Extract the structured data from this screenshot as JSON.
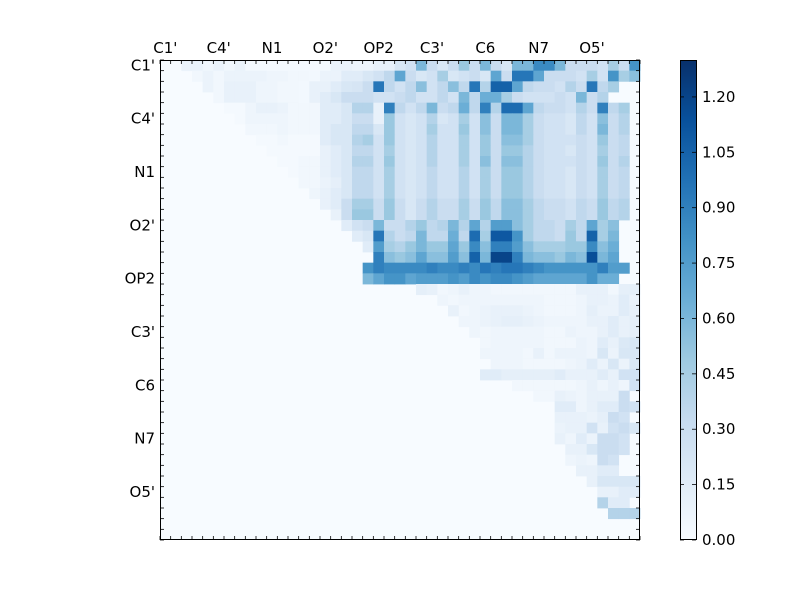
{
  "chart_data": {
    "type": "heatmap",
    "title": "",
    "xlabel": "",
    "ylabel": "",
    "size": 45,
    "x_tick_labels": [
      "C1'",
      "C4'",
      "N1",
      "O2'",
      "OP2",
      "C3'",
      "C6",
      "N7",
      "O5'"
    ],
    "y_tick_labels": [
      "C1'",
      "C4'",
      "N1",
      "O2'",
      "OP2",
      "C3'",
      "C6",
      "N7",
      "O5'"
    ],
    "label_indices": [
      0,
      5,
      10,
      15,
      20,
      25,
      30,
      35,
      40
    ],
    "value_range": [
      0,
      1.3
    ],
    "colorbar_ticks": [
      "0.00",
      "0.15",
      "0.30",
      "0.45",
      "0.60",
      "0.75",
      "0.90",
      "1.05",
      "1.20"
    ],
    "colormap": "Blues",
    "colormap_stops": [
      "#f7fbff",
      "#deebf7",
      "#c6dbef",
      "#9ecae1",
      "#6baed6",
      "#4292c6",
      "#2171b5",
      "#08519c",
      "#08306b"
    ],
    "rows": [
      {
        "from": 2,
        "values": [
          0.08,
          0.08,
          0.04,
          0.08,
          0.04,
          0.08,
          0.02,
          0.02,
          0.02,
          0.02,
          0.02,
          0.02,
          0.02,
          0.02,
          0.08,
          0.08,
          0.06,
          0.06,
          0.1,
          0.1,
          0.2,
          0.25,
          0.6,
          0.3,
          0.2,
          0.3,
          0.5,
          0.3,
          0.6,
          0.3,
          0.2,
          0.6,
          0.6,
          0.85,
          0.85,
          0.6,
          0.3,
          0.3,
          0.3,
          0.25,
          0.45,
          0.3,
          0.8,
          0.4,
          0.5
        ]
      },
      {
        "from": 3,
        "values": [
          0.04,
          0.08,
          0.04,
          0.08,
          0.08,
          0.08,
          0.08,
          0.06,
          0.06,
          0.04,
          0.04,
          0.03,
          0.08,
          0.08,
          0.15,
          0.15,
          0.2,
          0.25,
          0.35,
          0.7,
          0.3,
          0.2,
          0.25,
          0.45,
          0.2,
          0.25,
          0.3,
          0.2,
          0.7,
          0.3,
          0.95,
          0.95,
          0.7,
          0.3,
          0.3,
          0.3,
          0.25,
          0.45,
          0.25,
          0.8,
          0.45,
          0.55
        ]
      },
      {
        "from": 4,
        "values": [
          0.08,
          0.04,
          0.1,
          0.1,
          0.1,
          0.06,
          0.06,
          0.04,
          0.04,
          0.03,
          0.1,
          0.1,
          0.15,
          0.2,
          0.22,
          0.3,
          0.95,
          0.35,
          0.25,
          0.35,
          0.55,
          0.25,
          0.35,
          0.55,
          0.35,
          0.95,
          0.4,
          1.05,
          1.05,
          0.7,
          0.35,
          0.3,
          0.3,
          0.25,
          0.4,
          0.3,
          0.95,
          0.35,
          0.45
        ]
      },
      {
        "from": 5,
        "values": [
          0.04,
          0.1,
          0.1,
          0.1,
          0.06,
          0.06,
          0.04,
          0.04,
          0.03,
          0.1,
          0.15,
          0.2,
          0.3,
          0.3,
          0.3,
          0.25,
          0.25,
          0.3,
          0.35,
          0.25,
          0.25,
          0.35,
          0.25,
          0.6,
          0.35,
          0.65,
          0.65,
          0.45,
          0.3,
          0.25,
          0.25,
          0.25,
          0.3,
          0.25,
          0.6,
          0.3,
          0.4
        ]
      },
      {
        "from": 6,
        "values": [
          0.02,
          0.02,
          0.06,
          0.1,
          0.1,
          0.08,
          0.04,
          0.04,
          0.04,
          0.15,
          0.15,
          0.2,
          0.4,
          0.4,
          0.1,
          0.9,
          0.35,
          0.25,
          0.35,
          0.6,
          0.3,
          0.35,
          0.65,
          0.35,
          0.9,
          0.4,
          1.0,
          1.0,
          0.7,
          0.35,
          0.3,
          0.3,
          0.25,
          0.4,
          0.3,
          0.9,
          0.35,
          0.45
        ]
      },
      {
        "from": 7,
        "values": [
          0.02,
          0.06,
          0.06,
          0.06,
          0.06,
          0.04,
          0.04,
          0.04,
          0.15,
          0.15,
          0.2,
          0.3,
          0.3,
          0.1,
          0.5,
          0.25,
          0.2,
          0.25,
          0.4,
          0.2,
          0.25,
          0.45,
          0.25,
          0.55,
          0.3,
          0.6,
          0.6,
          0.45,
          0.3,
          0.25,
          0.25,
          0.2,
          0.35,
          0.25,
          0.55,
          0.3,
          0.4
        ]
      },
      {
        "from": 8,
        "values": [
          0.04,
          0.04,
          0.04,
          0.06,
          0.04,
          0.04,
          0.04,
          0.15,
          0.2,
          0.2,
          0.35,
          0.35,
          0.2,
          0.5,
          0.25,
          0.2,
          0.25,
          0.45,
          0.25,
          0.25,
          0.5,
          0.25,
          0.55,
          0.3,
          0.6,
          0.6,
          0.45,
          0.3,
          0.25,
          0.25,
          0.2,
          0.35,
          0.25,
          0.6,
          0.3,
          0.4
        ]
      },
      {
        "from": 9,
        "values": [
          0.02,
          0.02,
          0.04,
          0.02,
          0.02,
          0.02,
          0.15,
          0.2,
          0.2,
          0.4,
          0.45,
          0.25,
          0.5,
          0.25,
          0.2,
          0.25,
          0.4,
          0.25,
          0.25,
          0.45,
          0.25,
          0.5,
          0.3,
          0.55,
          0.55,
          0.45,
          0.3,
          0.25,
          0.25,
          0.25,
          0.3,
          0.25,
          0.5,
          0.3,
          0.35
        ]
      },
      {
        "from": 10,
        "values": [
          0.02,
          0.02,
          0.02,
          0.02,
          0.02,
          0.1,
          0.15,
          0.2,
          0.35,
          0.35,
          0.25,
          0.45,
          0.25,
          0.2,
          0.25,
          0.4,
          0.25,
          0.25,
          0.45,
          0.25,
          0.5,
          0.3,
          0.5,
          0.5,
          0.4,
          0.3,
          0.25,
          0.25,
          0.2,
          0.3,
          0.25,
          0.45,
          0.3,
          0.35
        ]
      },
      {
        "from": 11,
        "values": [
          0.02,
          0.02,
          0.04,
          0.04,
          0.1,
          0.15,
          0.2,
          0.4,
          0.4,
          0.25,
          0.5,
          0.25,
          0.2,
          0.25,
          0.4,
          0.25,
          0.25,
          0.45,
          0.25,
          0.55,
          0.3,
          0.55,
          0.55,
          0.4,
          0.3,
          0.25,
          0.25,
          0.25,
          0.3,
          0.25,
          0.5,
          0.3,
          0.4
        ]
      },
      {
        "from": 12,
        "values": [
          0.02,
          0.04,
          0.04,
          0.1,
          0.15,
          0.2,
          0.35,
          0.35,
          0.25,
          0.45,
          0.25,
          0.2,
          0.25,
          0.35,
          0.25,
          0.25,
          0.4,
          0.25,
          0.45,
          0.3,
          0.5,
          0.5,
          0.4,
          0.3,
          0.25,
          0.25,
          0.2,
          0.3,
          0.25,
          0.45,
          0.3,
          0.35
        ]
      },
      {
        "from": 13,
        "values": [
          0.04,
          0.04,
          0.08,
          0.12,
          0.2,
          0.35,
          0.35,
          0.25,
          0.45,
          0.25,
          0.2,
          0.25,
          0.35,
          0.25,
          0.25,
          0.4,
          0.25,
          0.45,
          0.3,
          0.5,
          0.5,
          0.4,
          0.3,
          0.25,
          0.25,
          0.2,
          0.3,
          0.25,
          0.45,
          0.3,
          0.35
        ]
      },
      {
        "from": 14,
        "values": [
          0.06,
          0.1,
          0.15,
          0.2,
          0.35,
          0.35,
          0.25,
          0.45,
          0.25,
          0.2,
          0.25,
          0.35,
          0.25,
          0.25,
          0.4,
          0.25,
          0.45,
          0.3,
          0.5,
          0.5,
          0.4,
          0.3,
          0.25,
          0.25,
          0.2,
          0.3,
          0.25,
          0.45,
          0.3,
          0.35
        ]
      },
      {
        "from": 15,
        "values": [
          0.1,
          0.15,
          0.3,
          0.45,
          0.45,
          0.3,
          0.5,
          0.3,
          0.2,
          0.3,
          0.4,
          0.3,
          0.3,
          0.45,
          0.3,
          0.5,
          0.35,
          0.55,
          0.55,
          0.45,
          0.35,
          0.3,
          0.3,
          0.25,
          0.35,
          0.3,
          0.5,
          0.35,
          0.4
        ]
      },
      {
        "from": 16,
        "values": [
          0.1,
          0.3,
          0.5,
          0.5,
          0.3,
          0.5,
          0.3,
          0.2,
          0.3,
          0.4,
          0.3,
          0.3,
          0.45,
          0.3,
          0.5,
          0.35,
          0.55,
          0.55,
          0.45,
          0.35,
          0.3,
          0.3,
          0.25,
          0.35,
          0.3,
          0.5,
          0.35,
          0.4
        ]
      },
      {
        "from": 17,
        "values": [
          0.15,
          0.25,
          0.3,
          0.6,
          0.3,
          0.3,
          0.4,
          0.5,
          0.35,
          0.4,
          0.6,
          0.4,
          0.7,
          0.4,
          0.75,
          0.75,
          0.55,
          0.45,
          0.35,
          0.35,
          0.3,
          0.45,
          0.35,
          0.7,
          0.45,
          0.55
        ]
      },
      {
        "from": 18,
        "values": [
          0.15,
          0.2,
          0.95,
          0.4,
          0.3,
          0.35,
          0.6,
          0.35,
          0.35,
          0.65,
          0.35,
          1.0,
          0.45,
          1.1,
          1.1,
          0.8,
          0.45,
          0.35,
          0.35,
          0.3,
          0.5,
          0.35,
          1.05,
          0.45,
          0.6
        ]
      },
      {
        "from": 19,
        "values": [
          0.15,
          0.75,
          0.45,
          0.4,
          0.5,
          0.6,
          0.5,
          0.5,
          0.7,
          0.5,
          0.85,
          0.55,
          0.9,
          0.9,
          0.75,
          0.55,
          0.45,
          0.45,
          0.45,
          0.5,
          0.5,
          0.85,
          0.55,
          0.65
        ]
      },
      {
        "from": 20,
        "values": [
          0.9,
          0.55,
          0.5,
          0.55,
          0.7,
          0.55,
          0.55,
          0.75,
          0.55,
          1.05,
          0.6,
          1.2,
          1.2,
          0.9,
          0.6,
          0.55,
          0.55,
          0.5,
          0.6,
          0.55,
          1.15,
          0.6,
          0.7
        ]
      },
      {
        "from": 19,
        "values": [
          0.8,
          0.9,
          0.85,
          0.85,
          0.85,
          0.85,
          0.9,
          0.85,
          0.85,
          0.9,
          0.85,
          0.95,
          0.9,
          0.95,
          0.95,
          0.9,
          0.85,
          0.8,
          0.8,
          0.8,
          0.8,
          0.8,
          0.9,
          0.75,
          0.75
        ]
      },
      {
        "from": 19,
        "values": [
          0.6,
          0.7,
          0.8,
          0.8,
          0.7,
          0.75,
          0.75,
          0.75,
          0.8,
          0.75,
          0.85,
          0.8,
          0.85,
          0.85,
          0.8,
          0.75,
          0.7,
          0.7,
          0.7,
          0.7,
          0.7,
          0.8,
          0.65,
          0.65
        ]
      },
      {
        "from": 24,
        "values": [
          0.12,
          0.1,
          0.04,
          0.06,
          0.1,
          0.06,
          0.06,
          0.04,
          0.04,
          0.04,
          0.04,
          0.04,
          0.04,
          0.04,
          0.04,
          0.1,
          0.1,
          0.1,
          0.04,
          0.12,
          0.12
        ]
      },
      {
        "from": 26,
        "values": [
          0.06,
          0.04,
          0.06,
          0.06,
          0.06,
          0.06,
          0.06,
          0.06,
          0.06,
          0.06,
          0.04,
          0.04,
          0.04,
          0.06,
          0.1,
          0.1,
          0.08,
          0.15,
          0.08,
          0.15
        ]
      },
      {
        "from": 27,
        "values": [
          0.1,
          0.04,
          0.06,
          0.08,
          0.1,
          0.1,
          0.1,
          0.08,
          0.06,
          0.04,
          0.04,
          0.04,
          0.06,
          0.12,
          0.08,
          0.08,
          0.15,
          0.1,
          0.15
        ]
      },
      {
        "from": 28,
        "values": [
          0.06,
          0.06,
          0.08,
          0.1,
          0.12,
          0.12,
          0.1,
          0.08,
          0.06,
          0.06,
          0.06,
          0.06,
          0.1,
          0.1,
          0.15,
          0.1,
          0.12,
          0.15
        ]
      },
      {
        "from": 29,
        "values": [
          0.06,
          0.04,
          0.06,
          0.06,
          0.06,
          0.06,
          0.06,
          0.04,
          0.04,
          0.08,
          0.06,
          0.06,
          0.1,
          0.15,
          0.1,
          0.12,
          0.15
        ]
      },
      {
        "from": 30,
        "values": [
          0.04,
          0.06,
          0.06,
          0.06,
          0.06,
          0.06,
          0.04,
          0.04,
          0.04,
          0.08,
          0.06,
          0.15,
          0.1,
          0.18,
          0.2
        ]
      },
      {
        "from": 30,
        "values": [
          0.06,
          0.06,
          0.06,
          0.06,
          0.04,
          0.1,
          0.04,
          0.08,
          0.08,
          0.08,
          0.06,
          0.2,
          0.08,
          0.2,
          0.2
        ]
      },
      {
        "from": 31,
        "values": [
          0.06,
          0.06,
          0.06,
          0.04,
          0.04,
          0.04,
          0.04,
          0.06,
          0.08,
          0.15,
          0.08,
          0.2,
          0.08,
          0.18
        ]
      },
      {
        "from": 30,
        "values": [
          0.15,
          0.15,
          0.12,
          0.12,
          0.12,
          0.12,
          0.12,
          0.15,
          0.1,
          0.1,
          0.1,
          0.15,
          0.1,
          0.25,
          0.25
        ]
      },
      {
        "from": 33,
        "values": [
          0.04,
          0.04,
          0.04,
          0.04,
          0.04,
          0.04,
          0.06,
          0.1,
          0.06,
          0.1,
          0.06,
          0.25,
          0.25
        ]
      },
      {
        "from": 35,
        "values": [
          0.04,
          0.04,
          0.1,
          0.08,
          0.06,
          0.1,
          0.1,
          0.1,
          0.3
        ]
      },
      {
        "from": 37,
        "values": [
          0.15,
          0.15,
          0.06,
          0.1,
          0.15,
          0.15,
          0.3,
          0.25
        ]
      },
      {
        "from": 37,
        "values": [
          0.1,
          0.1,
          0.1,
          0.08,
          0.12,
          0.3,
          0.25
        ]
      },
      {
        "from": 37,
        "values": [
          0.08,
          0.1,
          0.1,
          0.25,
          0.1,
          0.25,
          0.3,
          0.2
        ]
      },
      {
        "from": 37,
        "values": [
          0.1,
          0.06,
          0.15,
          0.08,
          0.3,
          0.3,
          0.25
        ]
      },
      {
        "from": 38,
        "values": [
          0.1,
          0.1,
          0.2,
          0.3,
          0.3,
          0.25
        ]
      },
      {
        "from": 38,
        "values": [
          0.06,
          0.08,
          0.06,
          0.3,
          0.25
        ]
      },
      {
        "from": 39,
        "values": [
          0.1,
          0.1,
          0.15,
          0.15
        ]
      },
      {
        "from": 40,
        "values": [
          0.1,
          0.2,
          0.2,
          0.2,
          0.2
        ]
      },
      {
        "from": 41,
        "values": [
          0.1,
          0.1,
          0.15,
          0.15
        ]
      },
      {
        "from": 41,
        "values": [
          0.4,
          0.15,
          0.15
        ]
      },
      {
        "from": 42,
        "values": [
          0.4,
          0.4,
          0.4
        ]
      }
    ]
  }
}
